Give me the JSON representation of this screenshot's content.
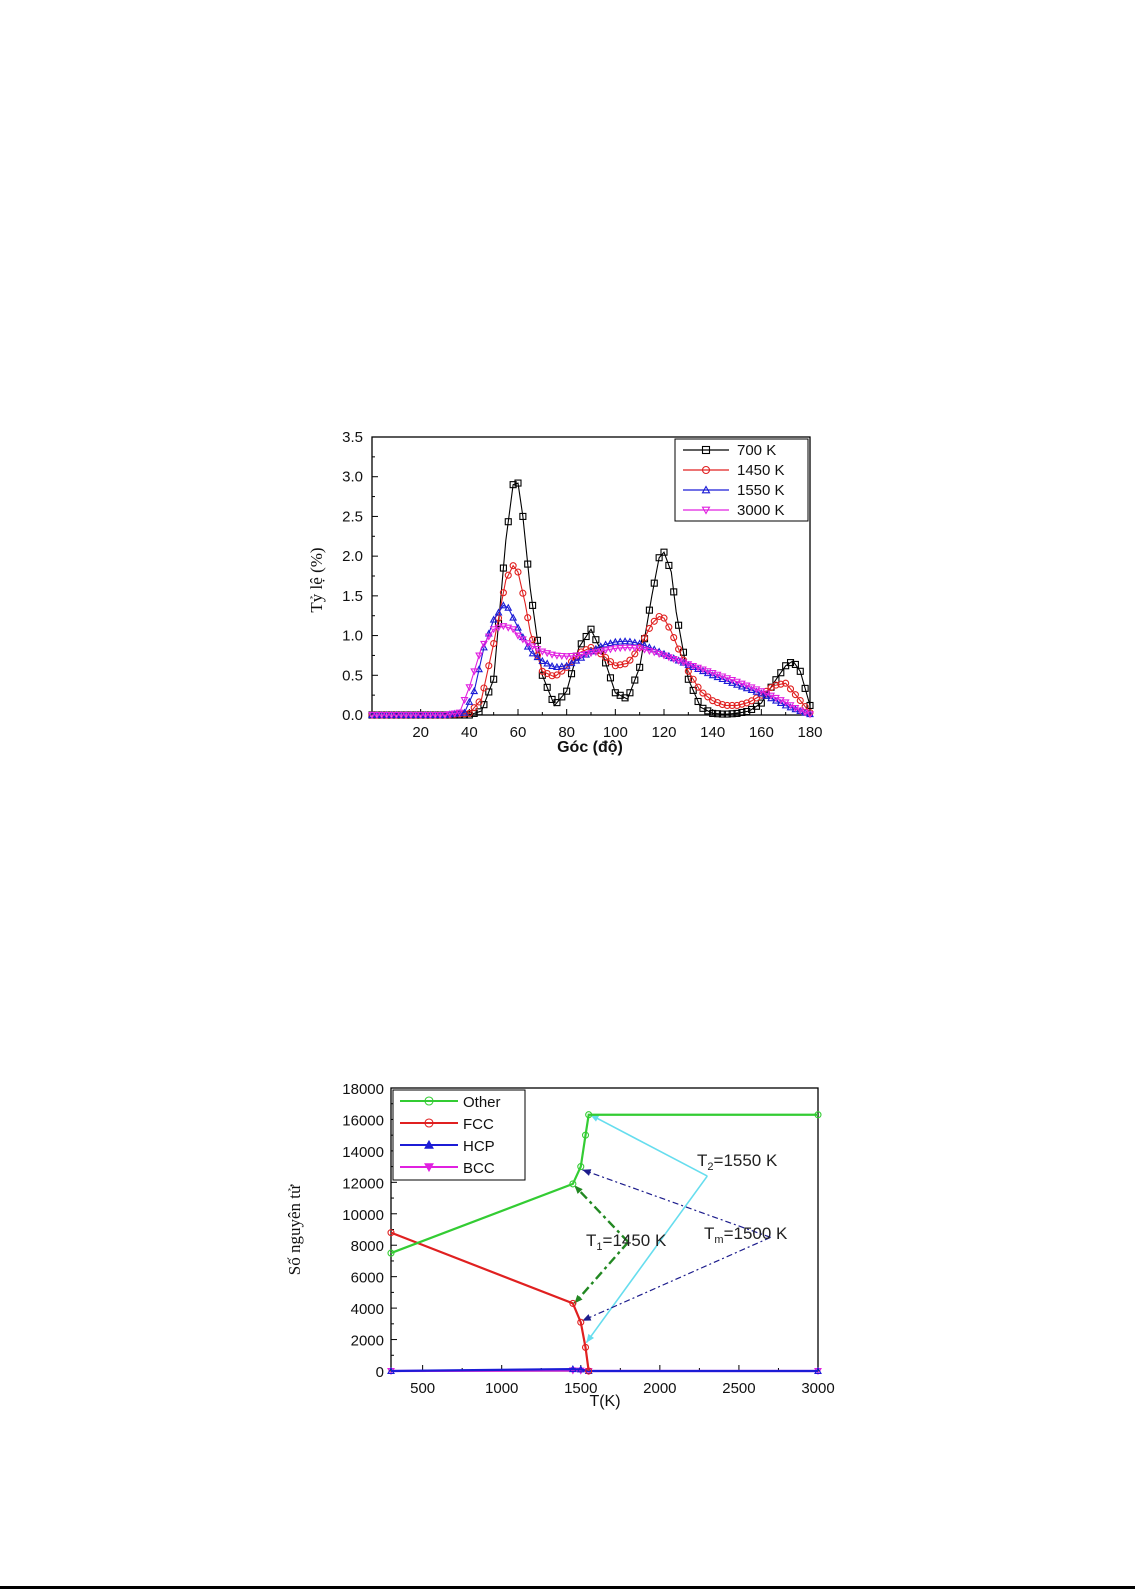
{
  "chart_data": [
    {
      "type": "line",
      "xlabel": "Góc (độ)",
      "ylabel": "Tỷ lệ (%)",
      "xlim": [
        0,
        180
      ],
      "ylim": [
        0,
        3.5
      ],
      "xticks": [
        "20",
        "40",
        "60",
        "80",
        "100",
        "120",
        "140",
        "160",
        "180"
      ],
      "yticks": [
        "0.0",
        "0.5",
        "1.0",
        "1.5",
        "2.0",
        "2.5",
        "3.0",
        "3.5"
      ],
      "legend_position": "top-right",
      "series": [
        {
          "name": "700 K",
          "color": "#000000",
          "marker": "square",
          "x": [
            0,
            30,
            40,
            45,
            50,
            55,
            58,
            60,
            62,
            65,
            70,
            75,
            80,
            85,
            90,
            95,
            100,
            105,
            110,
            115,
            118,
            120,
            123,
            125,
            130,
            135,
            140,
            145,
            150,
            155,
            160,
            165,
            170,
            173,
            176,
            180
          ],
          "y": [
            0,
            0,
            0,
            0.05,
            0.45,
            2.2,
            2.9,
            2.92,
            2.5,
            1.6,
            0.5,
            0.12,
            0.3,
            0.85,
            1.08,
            0.75,
            0.28,
            0.2,
            0.6,
            1.5,
            1.98,
            2.05,
            1.8,
            1.3,
            0.45,
            0.1,
            0.02,
            0.01,
            0.02,
            0.05,
            0.15,
            0.4,
            0.62,
            0.68,
            0.55,
            0.12
          ]
        },
        {
          "name": "1450 K",
          "color": "#e02020",
          "marker": "circle",
          "x": [
            0,
            30,
            40,
            45,
            50,
            55,
            58,
            60,
            63,
            65,
            70,
            75,
            80,
            85,
            90,
            95,
            100,
            105,
            110,
            115,
            118,
            120,
            123,
            125,
            130,
            135,
            140,
            145,
            150,
            155,
            160,
            165,
            170,
            175,
            180
          ],
          "y": [
            0,
            0,
            0.02,
            0.2,
            0.9,
            1.7,
            1.88,
            1.8,
            1.4,
            1.05,
            0.55,
            0.48,
            0.6,
            0.78,
            0.85,
            0.75,
            0.62,
            0.65,
            0.85,
            1.15,
            1.24,
            1.22,
            1.05,
            0.9,
            0.55,
            0.3,
            0.18,
            0.12,
            0.12,
            0.16,
            0.25,
            0.37,
            0.4,
            0.22,
            0.03
          ]
        },
        {
          "name": "1550 K",
          "color": "#1c1cd6",
          "marker": "triangle-up",
          "x": [
            0,
            30,
            38,
            42,
            46,
            50,
            54,
            56,
            60,
            65,
            70,
            75,
            80,
            85,
            90,
            95,
            100,
            105,
            110,
            115,
            120,
            130,
            140,
            150,
            160,
            170,
            175,
            180
          ],
          "y": [
            0,
            0,
            0.03,
            0.3,
            0.85,
            1.2,
            1.38,
            1.35,
            1.1,
            0.8,
            0.68,
            0.6,
            0.62,
            0.7,
            0.8,
            0.88,
            0.92,
            0.93,
            0.9,
            0.84,
            0.77,
            0.63,
            0.5,
            0.38,
            0.27,
            0.12,
            0.06,
            0.01
          ]
        },
        {
          "name": "3000 K",
          "color": "#e020e0",
          "marker": "triangle-down",
          "x": [
            0,
            30,
            36,
            40,
            45,
            50,
            54,
            58,
            60,
            65,
            70,
            75,
            80,
            85,
            90,
            95,
            100,
            105,
            110,
            115,
            120,
            130,
            140,
            150,
            160,
            170,
            175,
            180
          ],
          "y": [
            0,
            0,
            0.03,
            0.35,
            0.85,
            1.08,
            1.12,
            1.08,
            1.0,
            0.88,
            0.8,
            0.75,
            0.74,
            0.75,
            0.78,
            0.81,
            0.84,
            0.85,
            0.84,
            0.8,
            0.75,
            0.64,
            0.53,
            0.42,
            0.3,
            0.16,
            0.07,
            0.01
          ]
        }
      ]
    },
    {
      "type": "line",
      "xlabel": "T(K)",
      "ylabel": "Số nguyên tử",
      "xlim": [
        300,
        3000
      ],
      "ylim": [
        0,
        18000
      ],
      "xticks": [
        "500",
        "1000",
        "1500",
        "2000",
        "2500",
        "3000"
      ],
      "yticks": [
        "0",
        "2000",
        "4000",
        "6000",
        "8000",
        "10000",
        "12000",
        "14000",
        "16000",
        "18000"
      ],
      "legend_position": "top-left",
      "series": [
        {
          "name": "Other",
          "color": "#33cc33",
          "marker": "circle",
          "x": [
            300,
            1450,
            1500,
            1530,
            1550,
            3000
          ],
          "y": [
            7500,
            11900,
            13000,
            15000,
            16300,
            16300
          ]
        },
        {
          "name": "FCC",
          "color": "#e02020",
          "marker": "circle",
          "x": [
            300,
            1450,
            1500,
            1530,
            1550
          ],
          "y": [
            8800,
            4300,
            3100,
            1500,
            0
          ]
        },
        {
          "name": "HCP",
          "color": "#1c1cd6",
          "marker": "triangle-up",
          "x": [
            300,
            1450,
            1500,
            1550,
            3000
          ],
          "y": [
            0,
            120,
            100,
            0,
            0
          ]
        },
        {
          "name": "BCC",
          "color": "#e020e0",
          "marker": "triangle-down",
          "x": [
            300,
            1450,
            1500,
            1550,
            3000
          ],
          "y": [
            0,
            40,
            30,
            0,
            0
          ]
        }
      ],
      "annotations": {
        "t1": {
          "main": "T",
          "sub": "1",
          "rest": "=1450 K"
        },
        "tm": {
          "main": "T",
          "sub": "m",
          "rest": "=1500 K"
        },
        "t2": {
          "main": "T",
          "sub": "2",
          "rest": "=1550 K"
        }
      }
    }
  ]
}
